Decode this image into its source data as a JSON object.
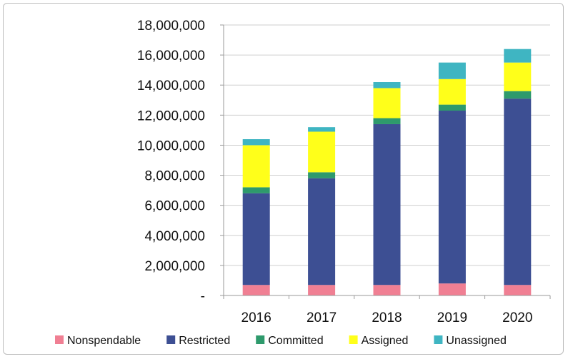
{
  "chart_data": {
    "type": "bar",
    "stacked": true,
    "categories": [
      "2016",
      "2017",
      "2018",
      "2019",
      "2020"
    ],
    "series": [
      {
        "name": "Nonspendable",
        "color": "#f07f93",
        "values": [
          700000,
          700000,
          700000,
          800000,
          700000
        ]
      },
      {
        "name": "Restricted",
        "color": "#3d4f93",
        "values": [
          6100000,
          7100000,
          10700000,
          11500000,
          12400000
        ]
      },
      {
        "name": "Committed",
        "color": "#2e9a6c",
        "values": [
          400000,
          400000,
          400000,
          400000,
          500000
        ]
      },
      {
        "name": "Assigned",
        "color": "#ffff1a",
        "values": [
          2800000,
          2700000,
          2000000,
          1700000,
          1900000
        ]
      },
      {
        "name": "Unassigned",
        "color": "#3fb5c2",
        "values": [
          400000,
          300000,
          400000,
          1100000,
          900000
        ]
      }
    ],
    "ylim": [
      0,
      18000000
    ],
    "yticks": [
      "-",
      "2,000,000",
      "4,000,000",
      "6,000,000",
      "8,000,000",
      "10,000,000",
      "12,000,000",
      "14,000,000",
      "16,000,000",
      "18,000,000"
    ],
    "grid": true,
    "legend_position": "bottom"
  }
}
